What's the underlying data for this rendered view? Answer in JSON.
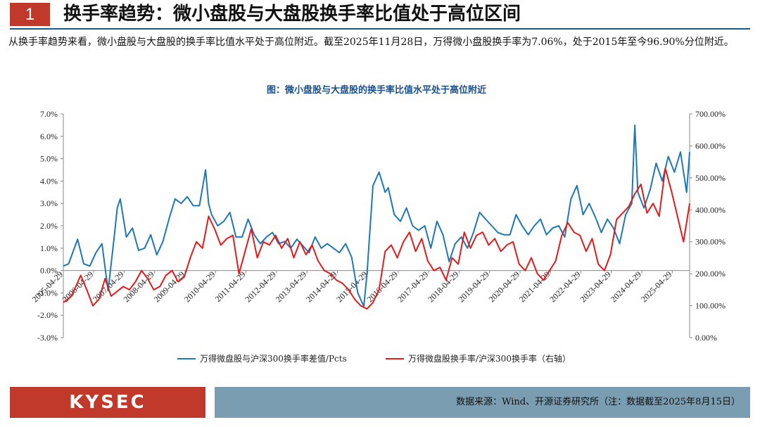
{
  "header": {
    "section_number": "1",
    "title": "换手率趋势：微小盘股与大盘股换手率比值处于高位区间"
  },
  "body_text": "从换手率趋势来看，微小盘股与大盘股的换手率比值水平处于高位附近。截至2025年11月28日，万得微小盘股换手率为7.06%，处于2015年至今96.90%分位附近。",
  "footer": {
    "logo": "KYSEC",
    "source": "数据来源：Wind、开源证券研究所（注：数据截至2025年8月15日）"
  },
  "colors": {
    "accent_red": "#c0392b",
    "title_blue": "#1a4f8a",
    "series_blue": "#1f77b4",
    "series_red": "#e31a1c",
    "source_bar": "#7a9db2"
  },
  "chart_data": {
    "type": "line",
    "title": "图：微小盘股与大盘股的换手率比值水平处于高位附近",
    "x_ticks": [
      "2005-04-29",
      "2006-04-29",
      "2007-04-29",
      "2008-04-29",
      "2009-04-29",
      "2010-04-29",
      "2011-04-29",
      "2012-04-29",
      "2013-04-29",
      "2014-04-29",
      "2015-04-29",
      "2016-04-29",
      "2017-04-29",
      "2018-04-29",
      "2019-04-29",
      "2020-04-29",
      "2021-04-29",
      "2022-04-29",
      "2023-04-29",
      "2024-04-29",
      "2025-04-29"
    ],
    "y_left": {
      "range": [
        -3.0,
        7.0
      ],
      "ticks": [
        "-3.0%",
        "-2.0%",
        "-1.0%",
        "0.0%",
        "1.0%",
        "2.0%",
        "3.0%",
        "4.0%",
        "5.0%",
        "6.0%",
        "7.0%"
      ]
    },
    "y_right": {
      "range": [
        0,
        700
      ],
      "ticks": [
        "0.00%",
        "100.00%",
        "200.00%",
        "300.00%",
        "400.00%",
        "500.00%",
        "600.00%",
        "700.00%"
      ]
    },
    "grid": false,
    "legend_position": "bottom",
    "series": [
      {
        "name": "万得微盘股与沪深300换手率差值/Pcts",
        "axis": "left",
        "color": "#1f77b4",
        "x": [
          2005.33,
          2005.5,
          2005.8,
          2006.0,
          2006.2,
          2006.4,
          2006.6,
          2006.8,
          2007.0,
          2007.1,
          2007.2,
          2007.4,
          2007.6,
          2007.8,
          2008.0,
          2008.2,
          2008.4,
          2008.6,
          2008.8,
          2009.0,
          2009.2,
          2009.4,
          2009.6,
          2009.8,
          2010.0,
          2010.1,
          2010.2,
          2010.4,
          2010.6,
          2010.8,
          2011.0,
          2011.2,
          2011.4,
          2011.6,
          2011.8,
          2012.0,
          2012.2,
          2012.4,
          2012.6,
          2012.8,
          2013.0,
          2013.2,
          2013.4,
          2013.6,
          2013.8,
          2014.0,
          2014.2,
          2014.4,
          2014.6,
          2014.8,
          2015.0,
          2015.2,
          2015.3,
          2015.5,
          2015.7,
          2015.9,
          2016.0,
          2016.2,
          2016.4,
          2016.6,
          2016.8,
          2017.0,
          2017.2,
          2017.4,
          2017.6,
          2017.8,
          2018.0,
          2018.2,
          2018.4,
          2018.6,
          2018.8,
          2019.0,
          2019.2,
          2019.4,
          2019.6,
          2019.8,
          2020.0,
          2020.2,
          2020.4,
          2020.6,
          2020.8,
          2021.0,
          2021.2,
          2021.4,
          2021.6,
          2021.8,
          2022.0,
          2022.2,
          2022.4,
          2022.6,
          2022.8,
          2023.0,
          2023.2,
          2023.4,
          2023.6,
          2023.8,
          2024.0,
          2024.1,
          2024.2,
          2024.4,
          2024.6,
          2024.8,
          2025.0,
          2025.2,
          2025.4,
          2025.6,
          2025.8,
          2025.9
        ],
        "y": [
          0.2,
          0.3,
          1.4,
          0.3,
          0.2,
          0.8,
          1.2,
          -0.9,
          1.5,
          2.8,
          3.2,
          1.5,
          1.9,
          0.9,
          1.0,
          1.6,
          0.7,
          1.3,
          2.3,
          3.2,
          3.0,
          3.3,
          2.9,
          2.9,
          4.5,
          3.0,
          2.5,
          2.0,
          2.2,
          2.6,
          1.5,
          1.5,
          2.3,
          1.6,
          1.2,
          1.5,
          1.7,
          1.2,
          1.3,
          1.0,
          1.4,
          1.1,
          0.8,
          1.5,
          1.0,
          1.2,
          1.0,
          0.8,
          1.2,
          0.6,
          -1.0,
          -1.6,
          -0.2,
          3.8,
          4.4,
          3.5,
          3.7,
          2.5,
          2.2,
          2.8,
          2.0,
          1.8,
          2.0,
          1.0,
          2.2,
          1.6,
          0.4,
          1.2,
          1.5,
          1.0,
          1.7,
          2.6,
          2.3,
          2.0,
          1.7,
          1.6,
          1.6,
          2.5,
          2.0,
          1.6,
          2.0,
          2.3,
          1.6,
          1.9,
          2.0,
          1.5,
          3.2,
          3.8,
          2.5,
          3.0,
          2.4,
          1.7,
          2.3,
          1.9,
          1.2,
          2.5,
          3.0,
          6.5,
          3.5,
          2.8,
          3.6,
          4.8,
          4.0,
          5.1,
          4.4,
          5.3,
          3.5,
          5.3
        ]
      },
      {
        "name": "万得微盘股换手率/沪深300换手率（右轴）",
        "axis": "right",
        "color": "#e31a1c",
        "x": [
          2005.33,
          2005.6,
          2005.9,
          2006.1,
          2006.3,
          2006.5,
          2006.7,
          2006.9,
          2007.1,
          2007.3,
          2007.5,
          2007.7,
          2007.9,
          2008.1,
          2008.3,
          2008.5,
          2008.7,
          2008.9,
          2009.1,
          2009.3,
          2009.5,
          2009.7,
          2009.9,
          2010.1,
          2010.3,
          2010.5,
          2010.7,
          2010.9,
          2011.1,
          2011.3,
          2011.5,
          2011.7,
          2011.9,
          2012.1,
          2012.3,
          2012.5,
          2012.7,
          2012.9,
          2013.1,
          2013.3,
          2013.5,
          2013.7,
          2013.9,
          2014.1,
          2014.3,
          2014.5,
          2014.7,
          2014.9,
          2015.1,
          2015.3,
          2015.5,
          2015.7,
          2015.9,
          2016.1,
          2016.3,
          2016.5,
          2016.7,
          2016.9,
          2017.1,
          2017.3,
          2017.5,
          2017.7,
          2017.9,
          2018.1,
          2018.3,
          2018.5,
          2018.7,
          2018.9,
          2019.1,
          2019.3,
          2019.5,
          2019.7,
          2019.9,
          2020.1,
          2020.3,
          2020.5,
          2020.7,
          2020.9,
          2021.1,
          2021.3,
          2021.5,
          2021.7,
          2021.9,
          2022.1,
          2022.3,
          2022.5,
          2022.7,
          2022.9,
          2023.1,
          2023.3,
          2023.5,
          2023.7,
          2023.9,
          2024.1,
          2024.3,
          2024.5,
          2024.7,
          2024.9,
          2025.1,
          2025.3,
          2025.5,
          2025.7,
          2025.9
        ],
        "y": [
          110,
          130,
          195,
          150,
          100,
          120,
          185,
          130,
          145,
          160,
          150,
          175,
          210,
          185,
          150,
          160,
          195,
          210,
          175,
          190,
          250,
          300,
          280,
          380,
          340,
          290,
          310,
          320,
          200,
          270,
          340,
          250,
          300,
          290,
          320,
          280,
          310,
          250,
          300,
          260,
          290,
          240,
          210,
          200,
          180,
          170,
          150,
          120,
          100,
          90,
          110,
          150,
          270,
          290,
          250,
          300,
          330,
          270,
          310,
          240,
          210,
          220,
          180,
          250,
          230,
          330,
          280,
          320,
          330,
          290,
          310,
          270,
          290,
          300,
          230,
          210,
          250,
          200,
          180,
          210,
          240,
          320,
          360,
          330,
          320,
          270,
          310,
          230,
          210,
          260,
          370,
          390,
          410,
          450,
          480,
          390,
          420,
          380,
          530,
          460,
          380,
          300,
          420
        ]
      }
    ]
  }
}
